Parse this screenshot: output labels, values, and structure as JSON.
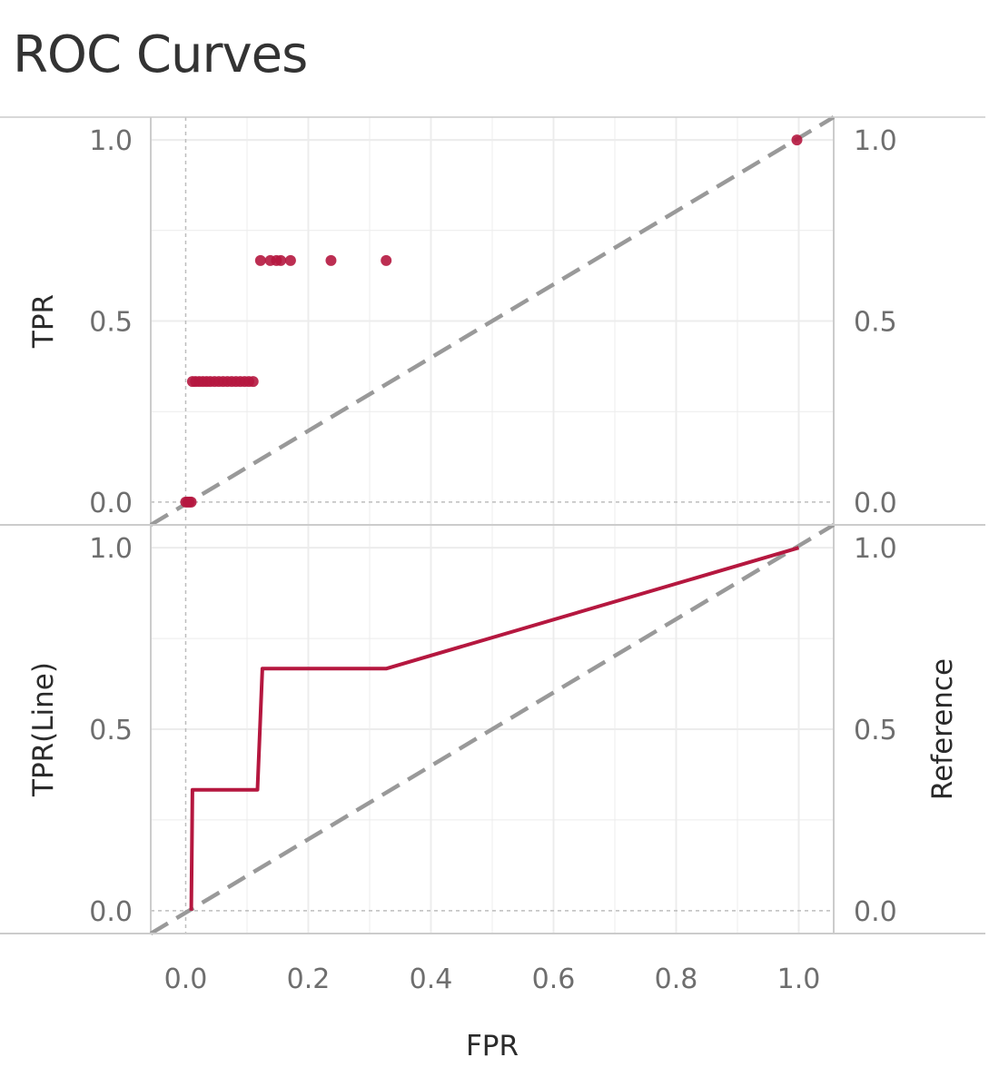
{
  "title": "ROC Curves",
  "chart_data": {
    "type": "scatter+line",
    "title": "ROC Curves",
    "xlabel": "FPR",
    "xlim": [
      -0.057,
      1.057
    ],
    "x_ticks": [
      "0.0",
      "0.2",
      "0.4",
      "0.6",
      "0.8",
      "1.0"
    ],
    "x_tick_values": [
      0,
      0.2,
      0.4,
      0.6,
      0.8,
      1.0
    ],
    "y_ticks": [
      "0.0",
      "0.5",
      "1.0"
    ],
    "y_tick_values": [
      0,
      0.5,
      1.0
    ],
    "grid": true,
    "colors": {
      "series": "#b5173f",
      "reference": "#999999",
      "grid": "#ececec",
      "border": "#cccccc"
    },
    "panels": [
      {
        "id": "top",
        "type": "scatter",
        "ylabel": "TPR",
        "right_label": "",
        "ylim": [
          -0.063,
          1.063
        ],
        "points": [
          {
            "x": 0.0,
            "y": 0.0
          },
          {
            "x": 0.003,
            "y": 0.0
          },
          {
            "x": 0.006,
            "y": 0.0
          },
          {
            "x": 0.009,
            "y": 0.0
          },
          {
            "x": 0.011,
            "y": 0.333
          },
          {
            "x": 0.016,
            "y": 0.333
          },
          {
            "x": 0.022,
            "y": 0.333
          },
          {
            "x": 0.028,
            "y": 0.333
          },
          {
            "x": 0.034,
            "y": 0.333
          },
          {
            "x": 0.04,
            "y": 0.333
          },
          {
            "x": 0.047,
            "y": 0.333
          },
          {
            "x": 0.054,
            "y": 0.333
          },
          {
            "x": 0.061,
            "y": 0.333
          },
          {
            "x": 0.068,
            "y": 0.333
          },
          {
            "x": 0.075,
            "y": 0.333
          },
          {
            "x": 0.082,
            "y": 0.333
          },
          {
            "x": 0.089,
            "y": 0.333
          },
          {
            "x": 0.096,
            "y": 0.333
          },
          {
            "x": 0.103,
            "y": 0.333
          },
          {
            "x": 0.11,
            "y": 0.333
          },
          {
            "x": 0.122,
            "y": 0.667
          },
          {
            "x": 0.138,
            "y": 0.667
          },
          {
            "x": 0.148,
            "y": 0.667
          },
          {
            "x": 0.155,
            "y": 0.667
          },
          {
            "x": 0.171,
            "y": 0.667
          },
          {
            "x": 0.237,
            "y": 0.667
          },
          {
            "x": 0.327,
            "y": 0.667
          },
          {
            "x": 0.997,
            "y": 1.0
          }
        ]
      },
      {
        "id": "bottom",
        "type": "line",
        "ylabel": "TPR(Line)",
        "right_label": "Reference",
        "ylim": [
          -0.063,
          1.063
        ],
        "points": [
          {
            "x": 0.009,
            "y": 0.0
          },
          {
            "x": 0.011,
            "y": 0.333
          },
          {
            "x": 0.117,
            "y": 0.333
          },
          {
            "x": 0.125,
            "y": 0.667
          },
          {
            "x": 0.327,
            "y": 0.667
          },
          {
            "x": 1.0,
            "y": 1.0
          }
        ]
      }
    ],
    "reference_line": {
      "style": "dashed",
      "from": [
        -0.057,
        -0.063
      ],
      "to": [
        1.057,
        1.063
      ]
    }
  }
}
